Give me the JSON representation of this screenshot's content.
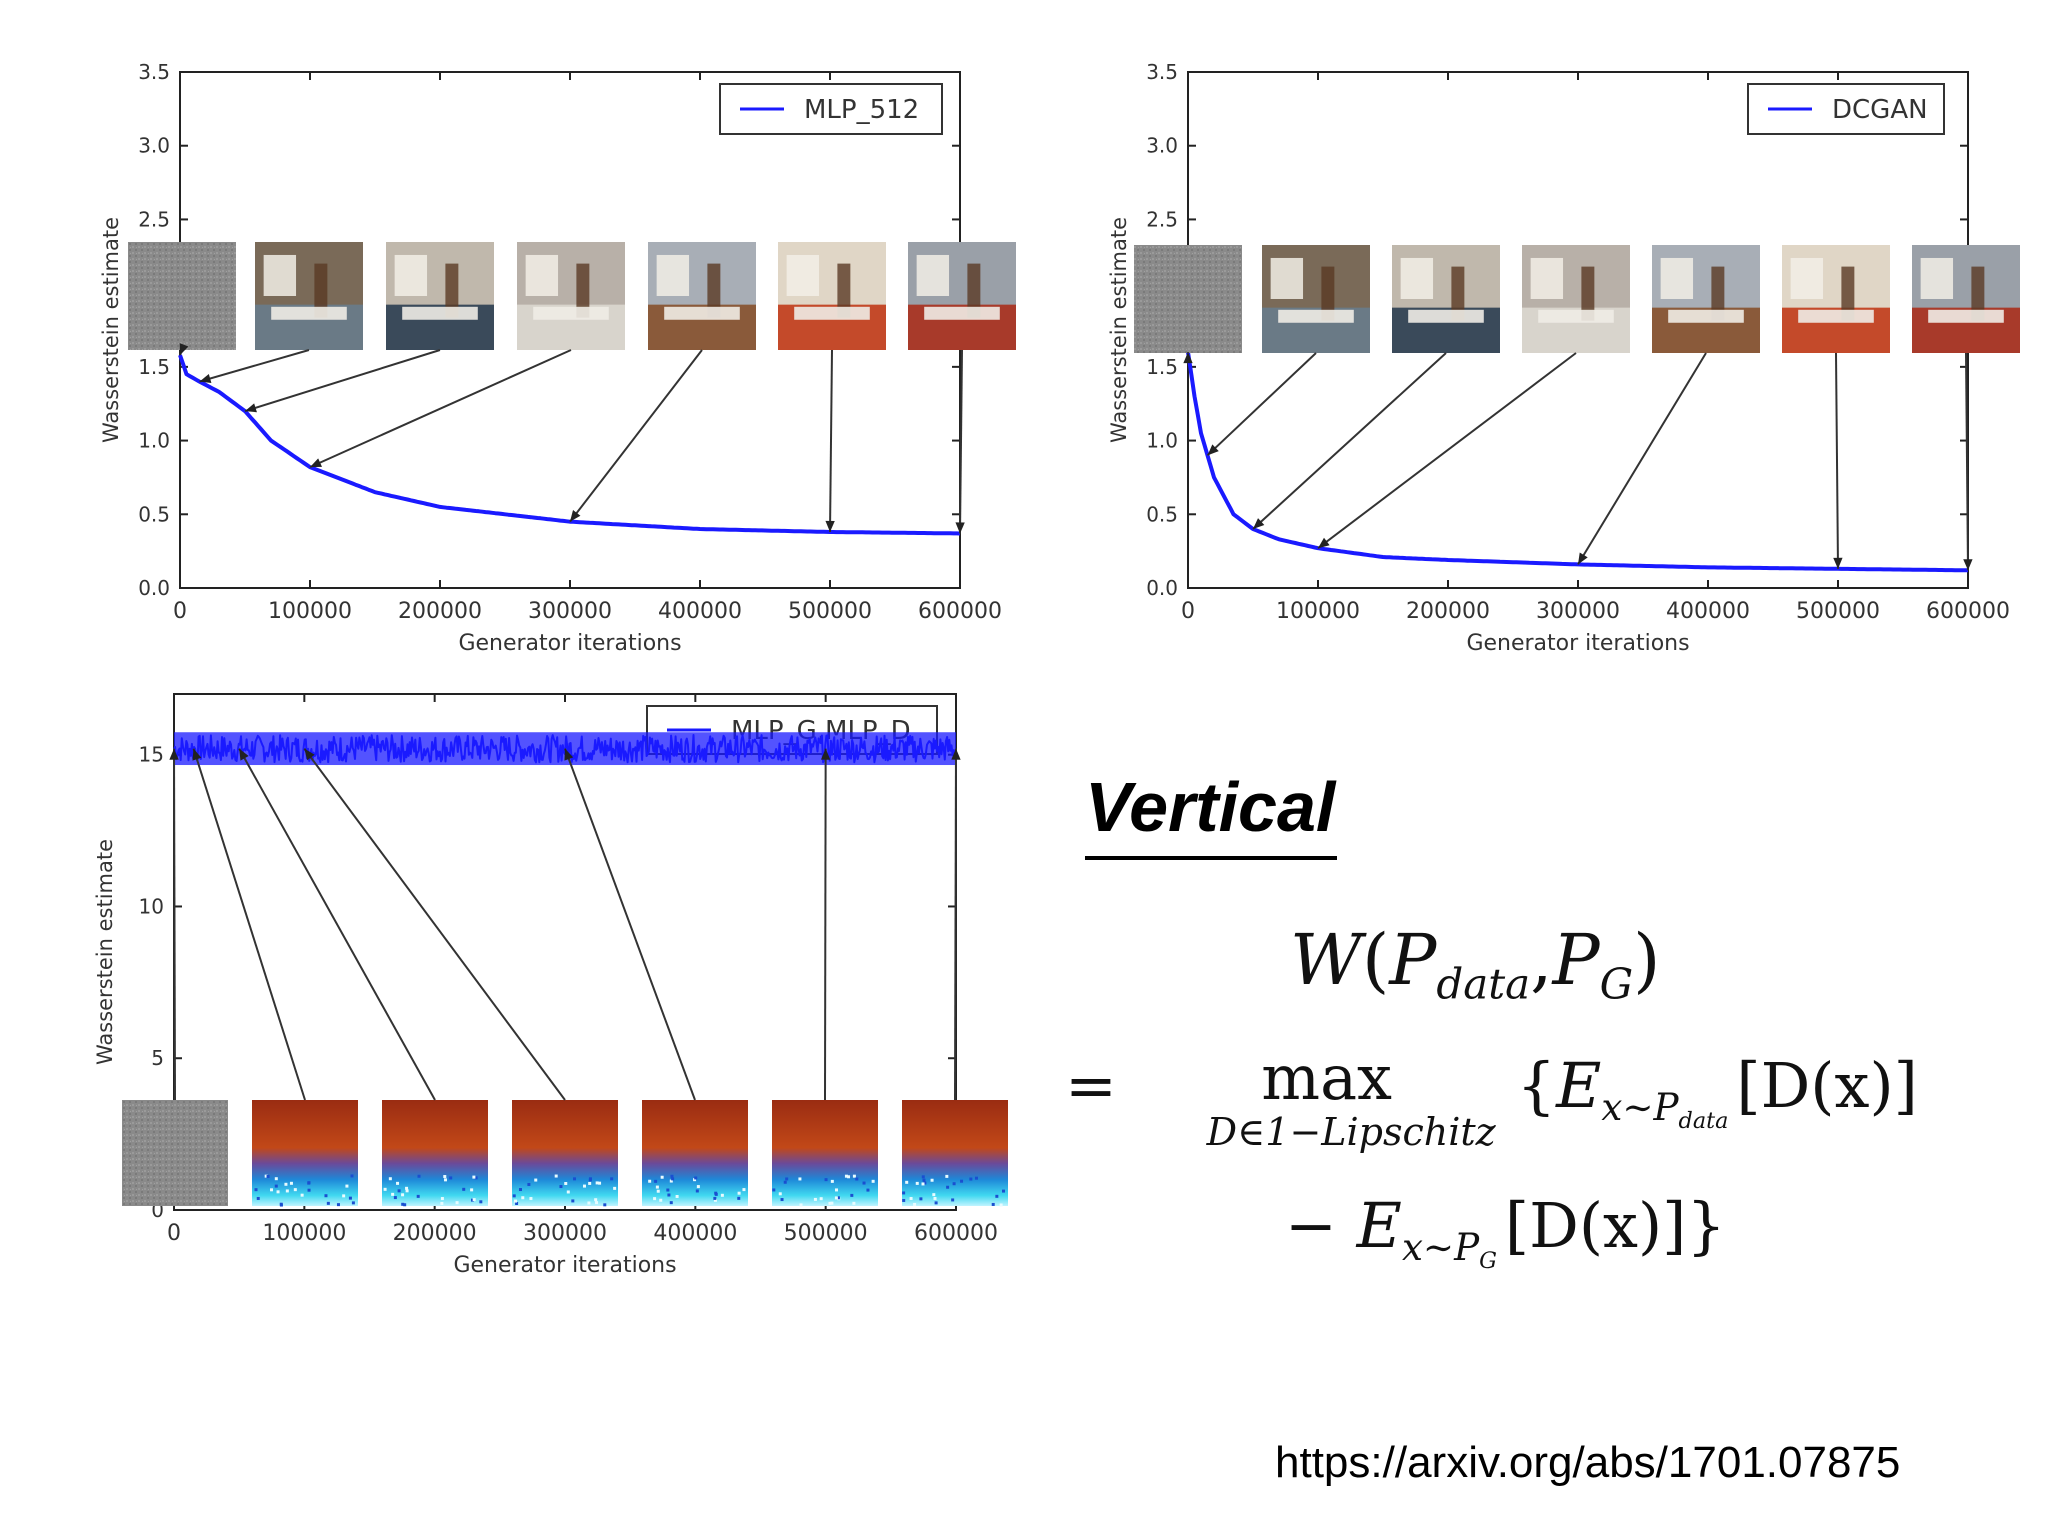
{
  "chart_data": [
    {
      "type": "line",
      "legend": "MLP_512",
      "legend_placement": "top-right",
      "xlabel": "Generator iterations",
      "ylabel": "Wasserstein estimate",
      "xlim": [
        0,
        600000
      ],
      "ylim": [
        0,
        3.5
      ],
      "xticks": [
        "0",
        "100000",
        "200000",
        "300000",
        "400000",
        "500000",
        "600000"
      ],
      "yticks": [
        "0.0",
        "0.5",
        "1.0",
        "1.5",
        "2.0",
        "2.5",
        "3.0",
        "3.5"
      ],
      "series": [
        {
          "x": [
            0,
            5000,
            15000,
            30000,
            50000,
            70000,
            100000,
            150000,
            200000,
            300000,
            400000,
            500000,
            600000
          ],
          "y": [
            1.58,
            1.45,
            1.4,
            1.33,
            1.2,
            1.0,
            0.82,
            0.65,
            0.55,
            0.45,
            0.4,
            0.38,
            0.37
          ]
        }
      ],
      "annotations": "sample images at iterations 0, 15000, 50000, 100000, 300000, 500000, 600000",
      "thumbnails": "bedroom",
      "line_color": "#1a1aff"
    },
    {
      "type": "line",
      "legend": "DCGAN",
      "legend_placement": "top-right",
      "xlabel": "Generator iterations",
      "ylabel": "Wasserstein estimate",
      "xlim": [
        0,
        600000
      ],
      "ylim": [
        0,
        3.5
      ],
      "xticks": [
        "0",
        "100000",
        "200000",
        "300000",
        "400000",
        "500000",
        "600000"
      ],
      "yticks": [
        "0.0",
        "0.5",
        "1.0",
        "1.5",
        "2.0",
        "2.5",
        "3.0",
        "3.5"
      ],
      "series": [
        {
          "x": [
            0,
            5000,
            10000,
            20000,
            35000,
            50000,
            70000,
            100000,
            150000,
            200000,
            300000,
            400000,
            500000,
            600000
          ],
          "y": [
            1.6,
            1.3,
            1.05,
            0.75,
            0.5,
            0.4,
            0.33,
            0.27,
            0.21,
            0.19,
            0.16,
            0.14,
            0.13,
            0.12
          ]
        }
      ],
      "annotations": "sample images at iterations 0, 15000, 50000, 100000, 300000, 500000, 600000",
      "thumbnails": "bedroom",
      "line_color": "#1a1aff"
    },
    {
      "type": "line",
      "legend": "MLP_G,MLP_D",
      "legend_placement": "top-right",
      "xlabel": "Generator iterations",
      "ylabel": "Wasserstein estimate",
      "xlim": [
        0,
        600000
      ],
      "ylim": [
        0,
        17
      ],
      "xticks": [
        "0",
        "100000",
        "200000",
        "300000",
        "400000",
        "500000",
        "600000"
      ],
      "yticks": [
        "0",
        "5",
        "10",
        "15"
      ],
      "series": [
        {
          "description": "noisy, flat around 15.2 from start to end",
          "x": [
            0,
            600000
          ],
          "y": [
            15.2,
            15.2
          ],
          "noise": 0.45
        }
      ],
      "annotations": "sample images at iterations 0, 15000, 50000, 100000, 300000, 500000, 600000",
      "thumbnails": "noise",
      "line_color": "#1a1aff"
    }
  ],
  "heading": "Vertical",
  "formula": {
    "line1": {
      "W": "W",
      "open": "(",
      "P1": "P",
      "data": "data",
      "comma": ",",
      "P2": "P",
      "G": "G",
      "close": ")"
    },
    "line2": {
      "eq": "=",
      "max": "max",
      "sub": "D∈1−Lipschitz",
      "lbrace": "{",
      "E": "E",
      "sub_x": "x∼P",
      "sub_data": "data",
      "bracket": "[D(x)]"
    },
    "line3": {
      "minus": "−",
      "E": "E",
      "sub_x": "x∼P",
      "sub_G": "G",
      "bracket": "[D(x)]",
      "rbrace": "}"
    }
  },
  "source_url": "https://arxiv.org/abs/1701.07875"
}
